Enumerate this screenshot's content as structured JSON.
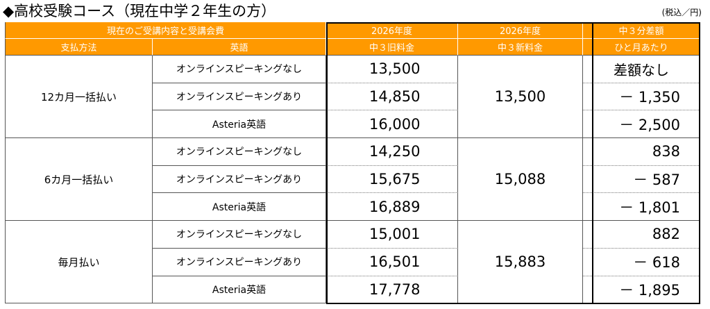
{
  "title": "◆高校受験コース（現在中学２年生の方）",
  "tax_note": "(税込／円)",
  "colors": {
    "header_bg": "#ff9900",
    "header_text": "#ffffff"
  },
  "header": {
    "group_label": "現在のご受講内容と受講会費",
    "payment_label": "支払方法",
    "english_label": "英語",
    "old_fee_line1": "2026年度",
    "old_fee_line2": "中３旧料金",
    "new_fee_line1": "2026年度",
    "new_fee_line2": "中３新料金",
    "diff_line1": "中３分差額",
    "diff_line2": "ひと月あたり"
  },
  "groups": [
    {
      "payment": "12カ月一括払い",
      "new_fee": "13,500",
      "rows": [
        {
          "english": "オンラインスピーキングなし",
          "old_fee": "13,500",
          "diff": "差額なし"
        },
        {
          "english": "オンラインスピーキングあり",
          "old_fee": "14,850",
          "diff": "－ 1,350"
        },
        {
          "english": "Asteria英語",
          "old_fee": "16,000",
          "diff": "－ 2,500"
        }
      ]
    },
    {
      "payment": "6カ月一括払い",
      "new_fee": "15,088",
      "rows": [
        {
          "english": "オンラインスピーキングなし",
          "old_fee": "14,250",
          "diff": "838"
        },
        {
          "english": "オンラインスピーキングあり",
          "old_fee": "15,675",
          "diff": "－ 587"
        },
        {
          "english": "Asteria英語",
          "old_fee": "16,889",
          "diff": "－ 1,801"
        }
      ]
    },
    {
      "payment": "毎月払い",
      "new_fee": "15,883",
      "rows": [
        {
          "english": "オンラインスピーキングなし",
          "old_fee": "15,001",
          "diff": "882"
        },
        {
          "english": "オンラインスピーキングあり",
          "old_fee": "16,501",
          "diff": "－ 618"
        },
        {
          "english": "Asteria英語",
          "old_fee": "17,778",
          "diff": "－ 1,895"
        }
      ]
    }
  ]
}
